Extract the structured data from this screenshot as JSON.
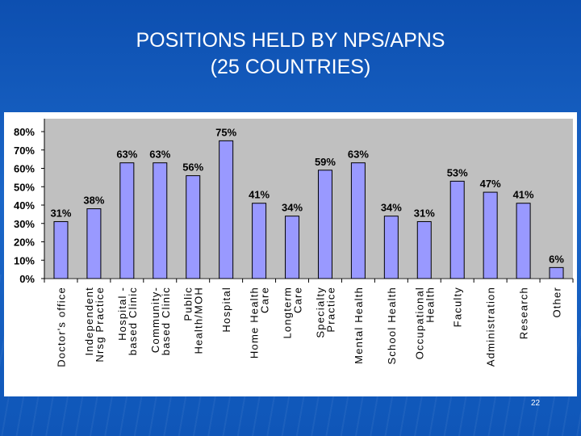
{
  "slide": {
    "title_line1": "POSITIONS HELD BY NPS/APNS",
    "title_line2": "(25 COUNTRIES)",
    "page_number": "22"
  },
  "colors": {
    "bar_fill": "#9999ff",
    "plot_bg": "#c0c0c0",
    "background": "#1560bd"
  },
  "chart_data": {
    "type": "bar",
    "categories": [
      [
        "Doctor's office"
      ],
      [
        "Independent",
        "Nrsg Practice"
      ],
      [
        "Hospital -",
        "based Clinic"
      ],
      [
        "Community-",
        "based Clinic"
      ],
      [
        "Public",
        "Health/MOH"
      ],
      [
        "Hospital"
      ],
      [
        "Home Health",
        "Care"
      ],
      [
        "Longterm",
        "Care"
      ],
      [
        "Specialty",
        "Practice"
      ],
      [
        "Mental Health"
      ],
      [
        "School Health"
      ],
      [
        "Occupational",
        "Health"
      ],
      [
        "Faculty"
      ],
      [
        "Administration"
      ],
      [
        "Research"
      ],
      [
        "Other"
      ]
    ],
    "values": [
      31,
      38,
      63,
      63,
      56,
      75,
      41,
      34,
      59,
      63,
      34,
      31,
      53,
      47,
      41,
      6
    ],
    "value_labels": [
      "31%",
      "38%",
      "63%",
      "63%",
      "56%",
      "75%",
      "41%",
      "34%",
      "59%",
      "63%",
      "34%",
      "31%",
      "53%",
      "47%",
      "41%",
      "6%"
    ],
    "y_ticks": [
      "0%",
      "10%",
      "20%",
      "30%",
      "40%",
      "50%",
      "60%",
      "70%",
      "80%"
    ],
    "ylim": [
      0,
      80
    ],
    "grid": false,
    "legend": "none"
  }
}
